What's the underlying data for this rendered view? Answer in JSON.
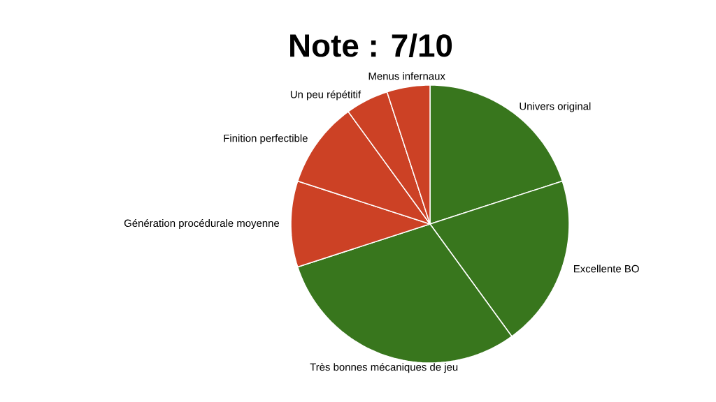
{
  "chart_data": {
    "type": "pie",
    "title": "Note : 7/10",
    "categories": [
      "Univers original",
      "Excellente BO",
      "Très bonnes mécaniques de jeu",
      "Génération procédurale moyenne",
      "Finition perfectible",
      "Un peu répétitif",
      "Menus infernaux"
    ],
    "values": [
      20,
      20,
      30,
      10,
      10,
      5,
      5
    ],
    "colors": [
      "#38761d",
      "#38761d",
      "#38761d",
      "#cc4125",
      "#cc4125",
      "#cc4125",
      "#cc4125"
    ]
  }
}
